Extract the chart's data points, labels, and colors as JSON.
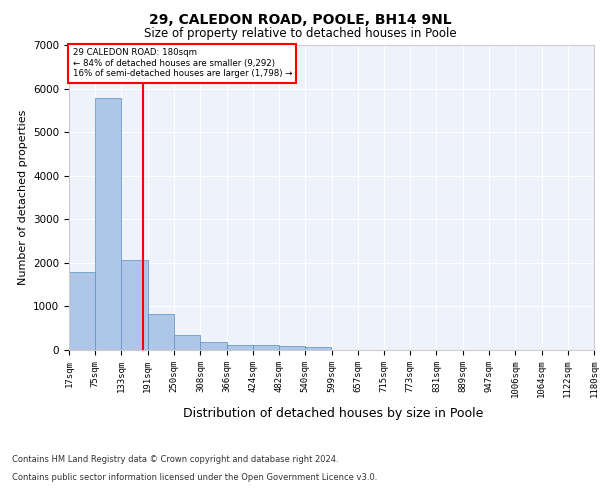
{
  "title1": "29, CALEDON ROAD, POOLE, BH14 9NL",
  "title2": "Size of property relative to detached houses in Poole",
  "xlabel": "Distribution of detached houses by size in Poole",
  "ylabel": "Number of detached properties",
  "annotation_line1": "29 CALEDON ROAD: 180sqm",
  "annotation_line2": "← 84% of detached houses are smaller (9,292)",
  "annotation_line3": "16% of semi-detached houses are larger (1,798) →",
  "property_size_sqm": 180,
  "bin_edges": [
    17,
    75,
    133,
    191,
    250,
    308,
    366,
    424,
    482,
    540,
    599,
    657,
    715,
    773,
    831,
    889,
    947,
    1006,
    1064,
    1122,
    1180
  ],
  "bar_heights": [
    1780,
    5780,
    2060,
    820,
    340,
    185,
    120,
    105,
    95,
    70,
    0,
    0,
    0,
    0,
    0,
    0,
    0,
    0,
    0,
    0
  ],
  "bar_color": "#aec6e8",
  "bar_edge_color": "#5a8fc0",
  "red_line_x": 180,
  "ylim": [
    0,
    7000
  ],
  "footnote1": "Contains HM Land Registry data © Crown copyright and database right 2024.",
  "footnote2": "Contains public sector information licensed under the Open Government Licence v3.0.",
  "plot_bg_color": "#eef2fb"
}
